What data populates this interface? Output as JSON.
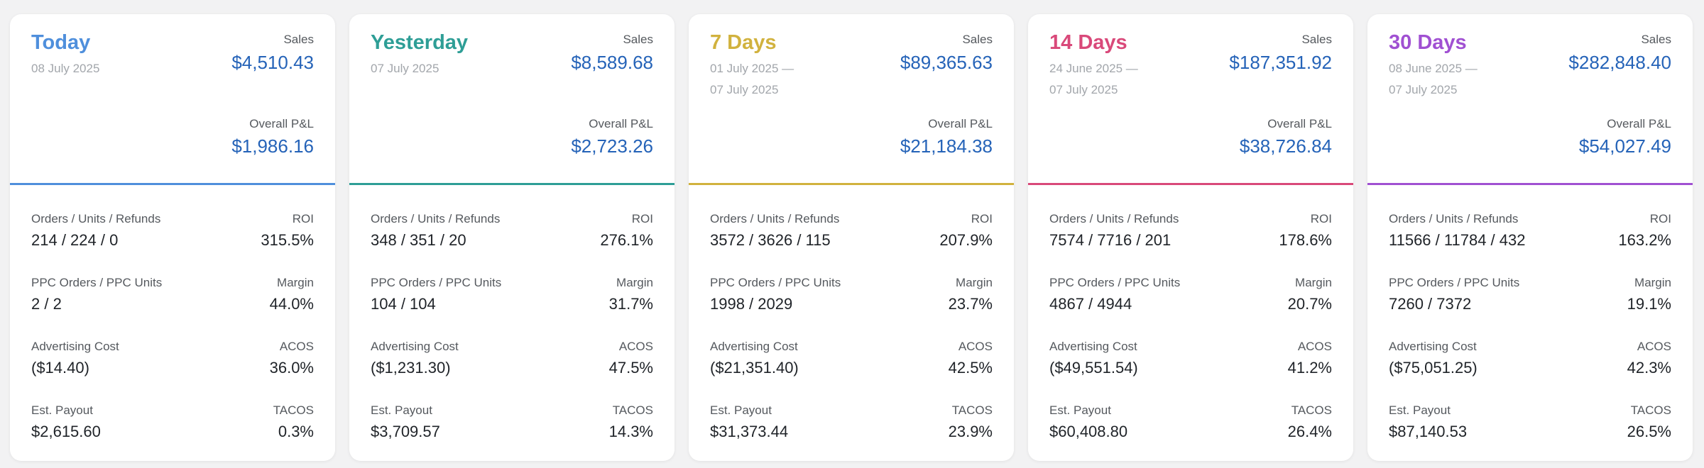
{
  "labels": {
    "sales": "Sales",
    "overall_pl": "Overall P&L",
    "orders_units_refunds": "Orders / Units / Refunds",
    "roi": "ROI",
    "ppc_orders_units": "PPC Orders / PPC Units",
    "margin": "Margin",
    "advertising_cost": "Advertising Cost",
    "acos": "ACOS",
    "est_payout": "Est. Payout",
    "tacos": "TACOS"
  },
  "cards": [
    {
      "title": "Today",
      "date_line1": "08 July 2025",
      "date_line2": "",
      "accent": "#4f8fdc",
      "sales": "$4,510.43",
      "overall_pl": "$1,986.16",
      "orders_units_refunds": "214 / 224 / 0",
      "roi": "315.5%",
      "ppc_orders_units": "2 / 2",
      "margin": "44.0%",
      "advertising_cost": "($14.40)",
      "acos": "36.0%",
      "est_payout": "$2,615.60",
      "tacos": "0.3%"
    },
    {
      "title": "Yesterday",
      "date_line1": "07 July 2025",
      "date_line2": "",
      "accent": "#2e9e96",
      "sales": "$8,589.68",
      "overall_pl": "$2,723.26",
      "orders_units_refunds": "348 / 351 / 20",
      "roi": "276.1%",
      "ppc_orders_units": "104 / 104",
      "margin": "31.7%",
      "advertising_cost": "($1,231.30)",
      "acos": "47.5%",
      "est_payout": "$3,709.57",
      "tacos": "14.3%"
    },
    {
      "title": "7 Days",
      "date_line1": "01 July 2025 —",
      "date_line2": "07 July 2025",
      "accent": "#d1b23e",
      "sales": "$89,365.63",
      "overall_pl": "$21,184.38",
      "orders_units_refunds": "3572 / 3626 / 115",
      "roi": "207.9%",
      "ppc_orders_units": "1998 / 2029",
      "margin": "23.7%",
      "advertising_cost": "($21,351.40)",
      "acos": "42.5%",
      "est_payout": "$31,373.44",
      "tacos": "23.9%"
    },
    {
      "title": "14 Days",
      "date_line1": "24 June 2025 —",
      "date_line2": "07 July 2025",
      "accent": "#d9497a",
      "sales": "$187,351.92",
      "overall_pl": "$38,726.84",
      "orders_units_refunds": "7574 / 7716 / 201",
      "roi": "178.6%",
      "ppc_orders_units": "4867 / 4944",
      "margin": "20.7%",
      "advertising_cost": "($49,551.54)",
      "acos": "41.2%",
      "est_payout": "$60,408.80",
      "tacos": "26.4%"
    },
    {
      "title": "30 Days",
      "date_line1": "08 June 2025 —",
      "date_line2": "07 July 2025",
      "accent": "#a050d2",
      "sales": "$282,848.40",
      "overall_pl": "$54,027.49",
      "orders_units_refunds": "11566 / 11784 / 432",
      "roi": "163.2%",
      "ppc_orders_units": "7260 / 7372",
      "margin": "19.1%",
      "advertising_cost": "($75,051.25)",
      "acos": "42.3%",
      "est_payout": "$87,140.53",
      "tacos": "26.5%"
    }
  ]
}
